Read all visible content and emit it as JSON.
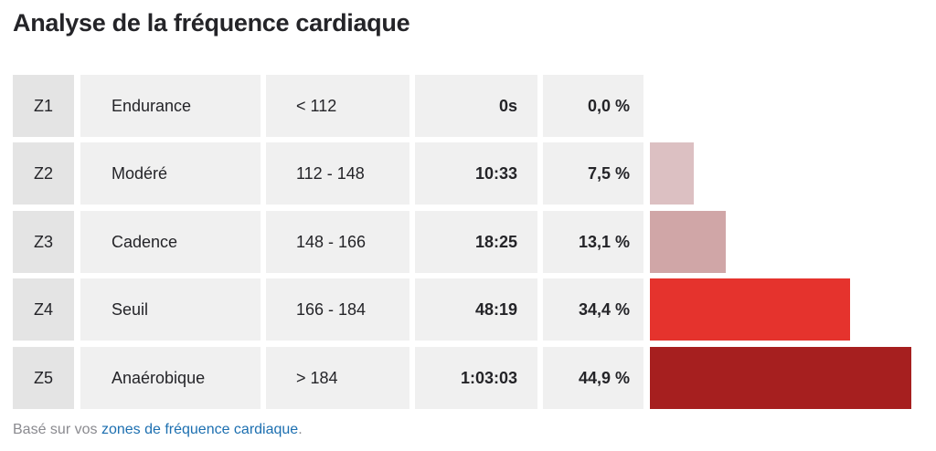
{
  "title": "Analyse de la fréquence cardiaque",
  "zones": [
    {
      "zone": "Z1",
      "name": "Endurance",
      "range": "< 112",
      "time": "0s",
      "percent": "0,0 %",
      "share": 0.0,
      "color": "#e6c3c5"
    },
    {
      "zone": "Z2",
      "name": "Modéré",
      "range": "112 - 148",
      "time": "10:33",
      "percent": "7,5 %",
      "share": 0.075,
      "color": "#dcc0c2"
    },
    {
      "zone": "Z3",
      "name": "Cadence",
      "range": "148 - 166",
      "time": "18:25",
      "percent": "13,1 %",
      "share": 0.131,
      "color": "#d0a6a7"
    },
    {
      "zone": "Z4",
      "name": "Seuil",
      "range": "166 - 184",
      "time": "48:19",
      "percent": "34,4 %",
      "share": 0.344,
      "color": "#e5332d"
    },
    {
      "zone": "Z5",
      "name": "Anaérobique",
      "range": "> 184",
      "time": "1:03:03",
      "percent": "44,9 %",
      "share": 0.449,
      "color": "#a61f1f"
    }
  ],
  "footer": {
    "prefix": "Basé sur vos ",
    "link": "zones de fréquence cardiaque",
    "suffix": "."
  }
}
